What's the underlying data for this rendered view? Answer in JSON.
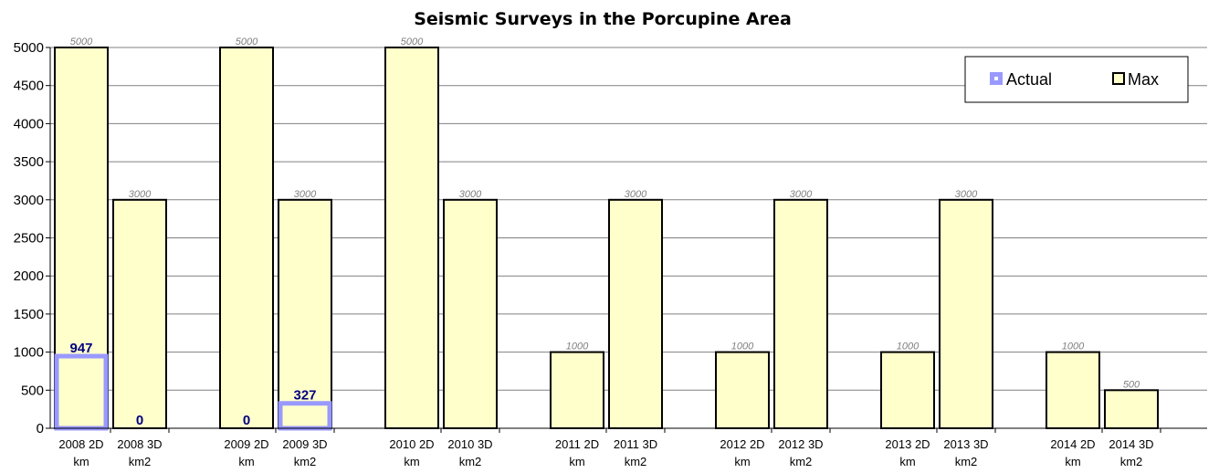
{
  "chart_data": {
    "type": "bar",
    "title": "Seismic Surveys in the Porcupine Area",
    "categories": [
      [
        "2008 2D",
        "km"
      ],
      [
        "2008 3D",
        "km2"
      ],
      [
        "2009 2D",
        "km"
      ],
      [
        "2009 3D",
        "km2"
      ],
      [
        "2010 2D",
        "km"
      ],
      [
        "2010 3D",
        "km2"
      ],
      [
        "2011 2D",
        "km"
      ],
      [
        "2011 3D",
        "km2"
      ],
      [
        "2012 2D",
        "km"
      ],
      [
        "2012 3D",
        "km2"
      ],
      [
        "2013 2D",
        "km"
      ],
      [
        "2013 3D",
        "km2"
      ],
      [
        "2014 2D",
        "km"
      ],
      [
        "2014 3D",
        "km2"
      ]
    ],
    "series": [
      {
        "name": "Actual",
        "values": [
          947,
          0,
          0,
          327,
          null,
          null,
          null,
          null,
          null,
          null,
          null,
          null,
          null,
          null
        ],
        "color": "#9999ff"
      },
      {
        "name": "Max",
        "values": [
          5000,
          3000,
          5000,
          3000,
          5000,
          3000,
          1000,
          3000,
          1000,
          3000,
          1000,
          3000,
          1000,
          500
        ],
        "color": "#ffffcc"
      }
    ],
    "ylim": [
      0,
      5000
    ],
    "yticks": [
      0,
      500,
      1000,
      1500,
      2000,
      2500,
      3000,
      3500,
      4000,
      4500,
      5000
    ],
    "grid": true,
    "legend_position": "top-right"
  }
}
